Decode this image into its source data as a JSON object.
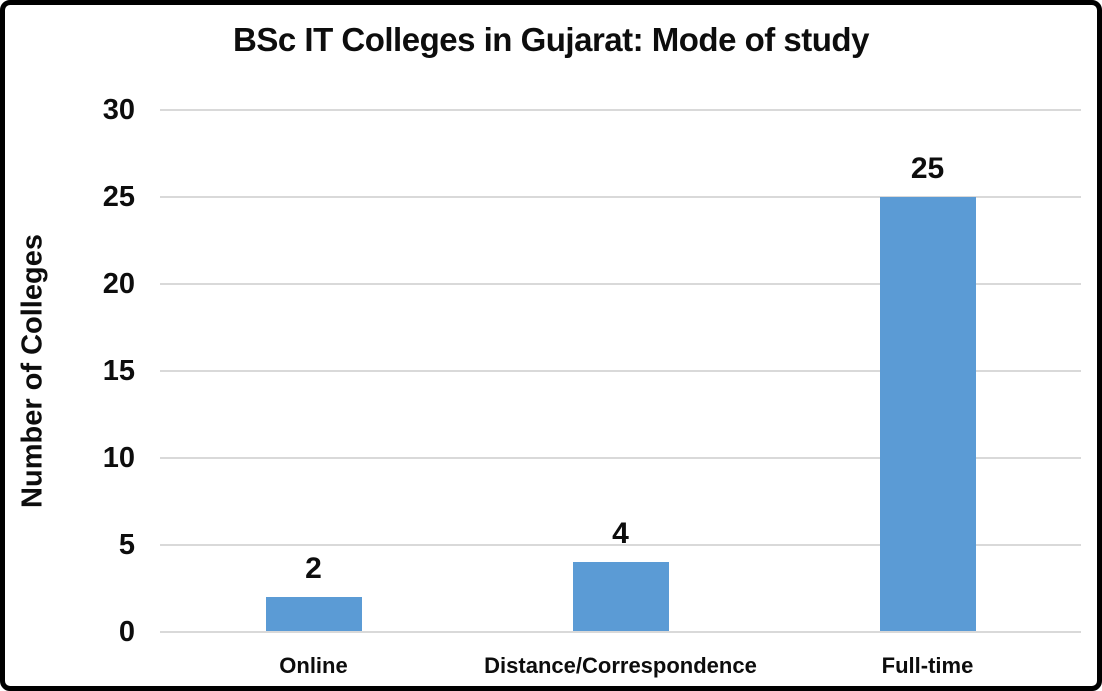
{
  "chart_data": {
    "type": "bar",
    "title": "BSc IT Colleges in Gujarat: Mode of study",
    "categories": [
      "Online",
      "Distance/Correspondence",
      "Full-time"
    ],
    "values": [
      2,
      4,
      25
    ],
    "data_labels": [
      "2",
      "4",
      "25"
    ],
    "xlabel": "",
    "ylabel": "Number of Colleges",
    "ylim": [
      0,
      30
    ],
    "yticks": [
      0,
      5,
      10,
      15,
      20,
      25,
      30
    ],
    "grid": true,
    "legend": false,
    "bar_color": "#5b9bd5",
    "gridline_color": "#d9d9d9",
    "text_color": "#0d0d0d",
    "background_color": "#ffffff",
    "frame_border_color": "#000000"
  }
}
